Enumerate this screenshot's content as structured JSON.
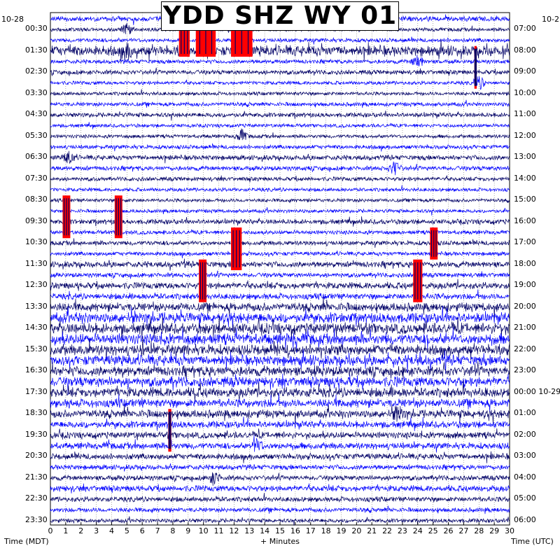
{
  "title": "YDD SHZ WY 01",
  "start_date_left": "10-28",
  "start_date_right": "10-2",
  "xlabel_left": "Time (MDT)",
  "xlabel_center": "+ Minutes",
  "xlabel_right": "Time (UTC)",
  "colors": {
    "trace_dark": "#000066",
    "trace_blue": "#0000ff",
    "clipped": "#ff0000",
    "grid": "#000000",
    "background": "#ffffff"
  },
  "chart_data": {
    "type": "helicorder",
    "x_range": [
      0,
      30
    ],
    "x_ticks": [
      "0",
      "1",
      "2",
      "3",
      "4",
      "5",
      "6",
      "7",
      "8",
      "9",
      "10",
      "11",
      "12",
      "13",
      "14",
      "15",
      "16",
      "17",
      "18",
      "19",
      "20",
      "21",
      "22",
      "23",
      "24",
      "25",
      "26",
      "27",
      "28",
      "29",
      "30"
    ],
    "rows_per_hour": 2,
    "row_count": 48,
    "left_hour_labels": [
      "00:30",
      "01:30",
      "02:30",
      "03:30",
      "04:30",
      "05:30",
      "06:30",
      "07:30",
      "08:30",
      "09:30",
      "10:30",
      "11:30",
      "12:30",
      "13:30",
      "14:30",
      "15:30",
      "16:30",
      "17:30",
      "18:30",
      "19:30",
      "20:30",
      "21:30",
      "22:30",
      "23:30"
    ],
    "right_hour_labels": [
      "07:00",
      "08:00",
      "09:00",
      "10:00",
      "11:00",
      "12:00",
      "13:00",
      "14:00",
      "15:00",
      "16:00",
      "17:00",
      "18:00",
      "19:00",
      "20:00",
      "21:00",
      "22:00",
      "23:00",
      "00:00 10-29",
      "01:00",
      "02:00",
      "03:00",
      "04:00",
      "05:00",
      "06:00"
    ],
    "row_activity": [
      0.35,
      0.2,
      0.25,
      0.9,
      0.25,
      0.3,
      0.2,
      0.2,
      0.25,
      0.3,
      0.2,
      0.2,
      0.25,
      0.35,
      0.3,
      0.25,
      0.2,
      0.2,
      0.2,
      0.35,
      0.25,
      0.3,
      0.25,
      0.45,
      0.3,
      0.5,
      0.45,
      0.7,
      0.9,
      0.95,
      0.95,
      0.9,
      0.9,
      0.85,
      0.85,
      0.8,
      0.7,
      0.65,
      0.55,
      0.5,
      0.5,
      0.45,
      0.35,
      0.35,
      0.45,
      0.35,
      0.3,
      0.25
    ],
    "clipped_events": [
      {
        "row": 1,
        "start_min": 8.4,
        "end_min": 9.1,
        "rows_spanned": 3
      },
      {
        "row": 1,
        "start_min": 9.5,
        "end_min": 10.8,
        "rows_spanned": 3
      },
      {
        "row": 1,
        "start_min": 11.8,
        "end_min": 13.2,
        "rows_spanned": 3
      },
      {
        "row": 3,
        "start_min": 27.7,
        "end_min": 27.85,
        "rows_spanned": 4
      },
      {
        "row": 17,
        "start_min": 0.8,
        "end_min": 1.3,
        "rows_spanned": 4
      },
      {
        "row": 17,
        "start_min": 4.2,
        "end_min": 4.7,
        "rows_spanned": 4
      },
      {
        "row": 20,
        "start_min": 11.8,
        "end_min": 12.5,
        "rows_spanned": 4
      },
      {
        "row": 20,
        "start_min": 24.8,
        "end_min": 25.3,
        "rows_spanned": 3
      },
      {
        "row": 23,
        "start_min": 9.7,
        "end_min": 10.2,
        "rows_spanned": 4
      },
      {
        "row": 23,
        "start_min": 23.7,
        "end_min": 24.3,
        "rows_spanned": 4
      },
      {
        "row": 37,
        "start_min": 7.7,
        "end_min": 7.9,
        "rows_spanned": 4
      }
    ],
    "local_bursts": [
      {
        "row": 1,
        "min": 5.0
      },
      {
        "row": 3,
        "min": 5.0
      },
      {
        "row": 4,
        "min": 24.0
      },
      {
        "row": 6,
        "min": 28.0
      },
      {
        "row": 11,
        "min": 12.5
      },
      {
        "row": 13,
        "min": 1.2
      },
      {
        "row": 14,
        "min": 22.5
      },
      {
        "row": 37,
        "min": 22.7
      },
      {
        "row": 40,
        "min": 13.5
      },
      {
        "row": 43,
        "min": 10.7
      }
    ]
  }
}
